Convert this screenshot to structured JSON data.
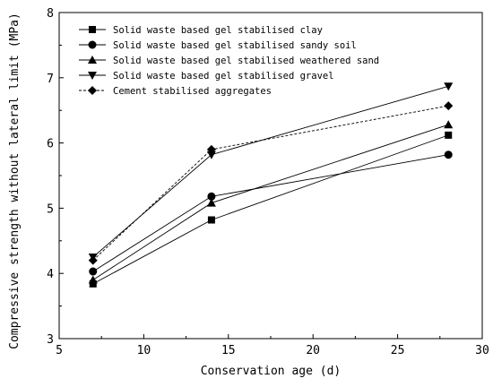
{
  "chart_data": {
    "type": "line",
    "title": "",
    "xlabel": "Conservation age (d)",
    "ylabel": "Compressive strength without lateral limit (MPa)",
    "xlim": [
      5,
      30
    ],
    "ylim": [
      3,
      8
    ],
    "xticks": [
      5,
      10,
      15,
      20,
      25,
      30
    ],
    "yticks": [
      3,
      4,
      5,
      6,
      7,
      8
    ],
    "grid": false,
    "legend_position": "top-left",
    "x": [
      7,
      14,
      28
    ],
    "series": [
      {
        "name": "Solid waste based gel stabilised clay",
        "values": [
          3.84,
          4.82,
          6.12
        ],
        "marker": "square",
        "line": "solid"
      },
      {
        "name": "Solid waste based gel stabilised sandy soil",
        "values": [
          4.03,
          5.18,
          5.82
        ],
        "marker": "circle",
        "line": "solid"
      },
      {
        "name": "Solid waste based gel stabilised weathered sand",
        "values": [
          3.9,
          5.08,
          6.28
        ],
        "marker": "triangle-up",
        "line": "solid"
      },
      {
        "name": "Solid waste based gel stabilised gravel",
        "values": [
          4.25,
          5.82,
          6.87
        ],
        "marker": "triangle-down",
        "line": "solid"
      },
      {
        "name": "Cement stabilised aggregates",
        "values": [
          4.2,
          5.9,
          6.57
        ],
        "marker": "diamond",
        "line": "dashed"
      }
    ],
    "colors": {
      "line": "#000000",
      "background": "#ffffff"
    }
  }
}
